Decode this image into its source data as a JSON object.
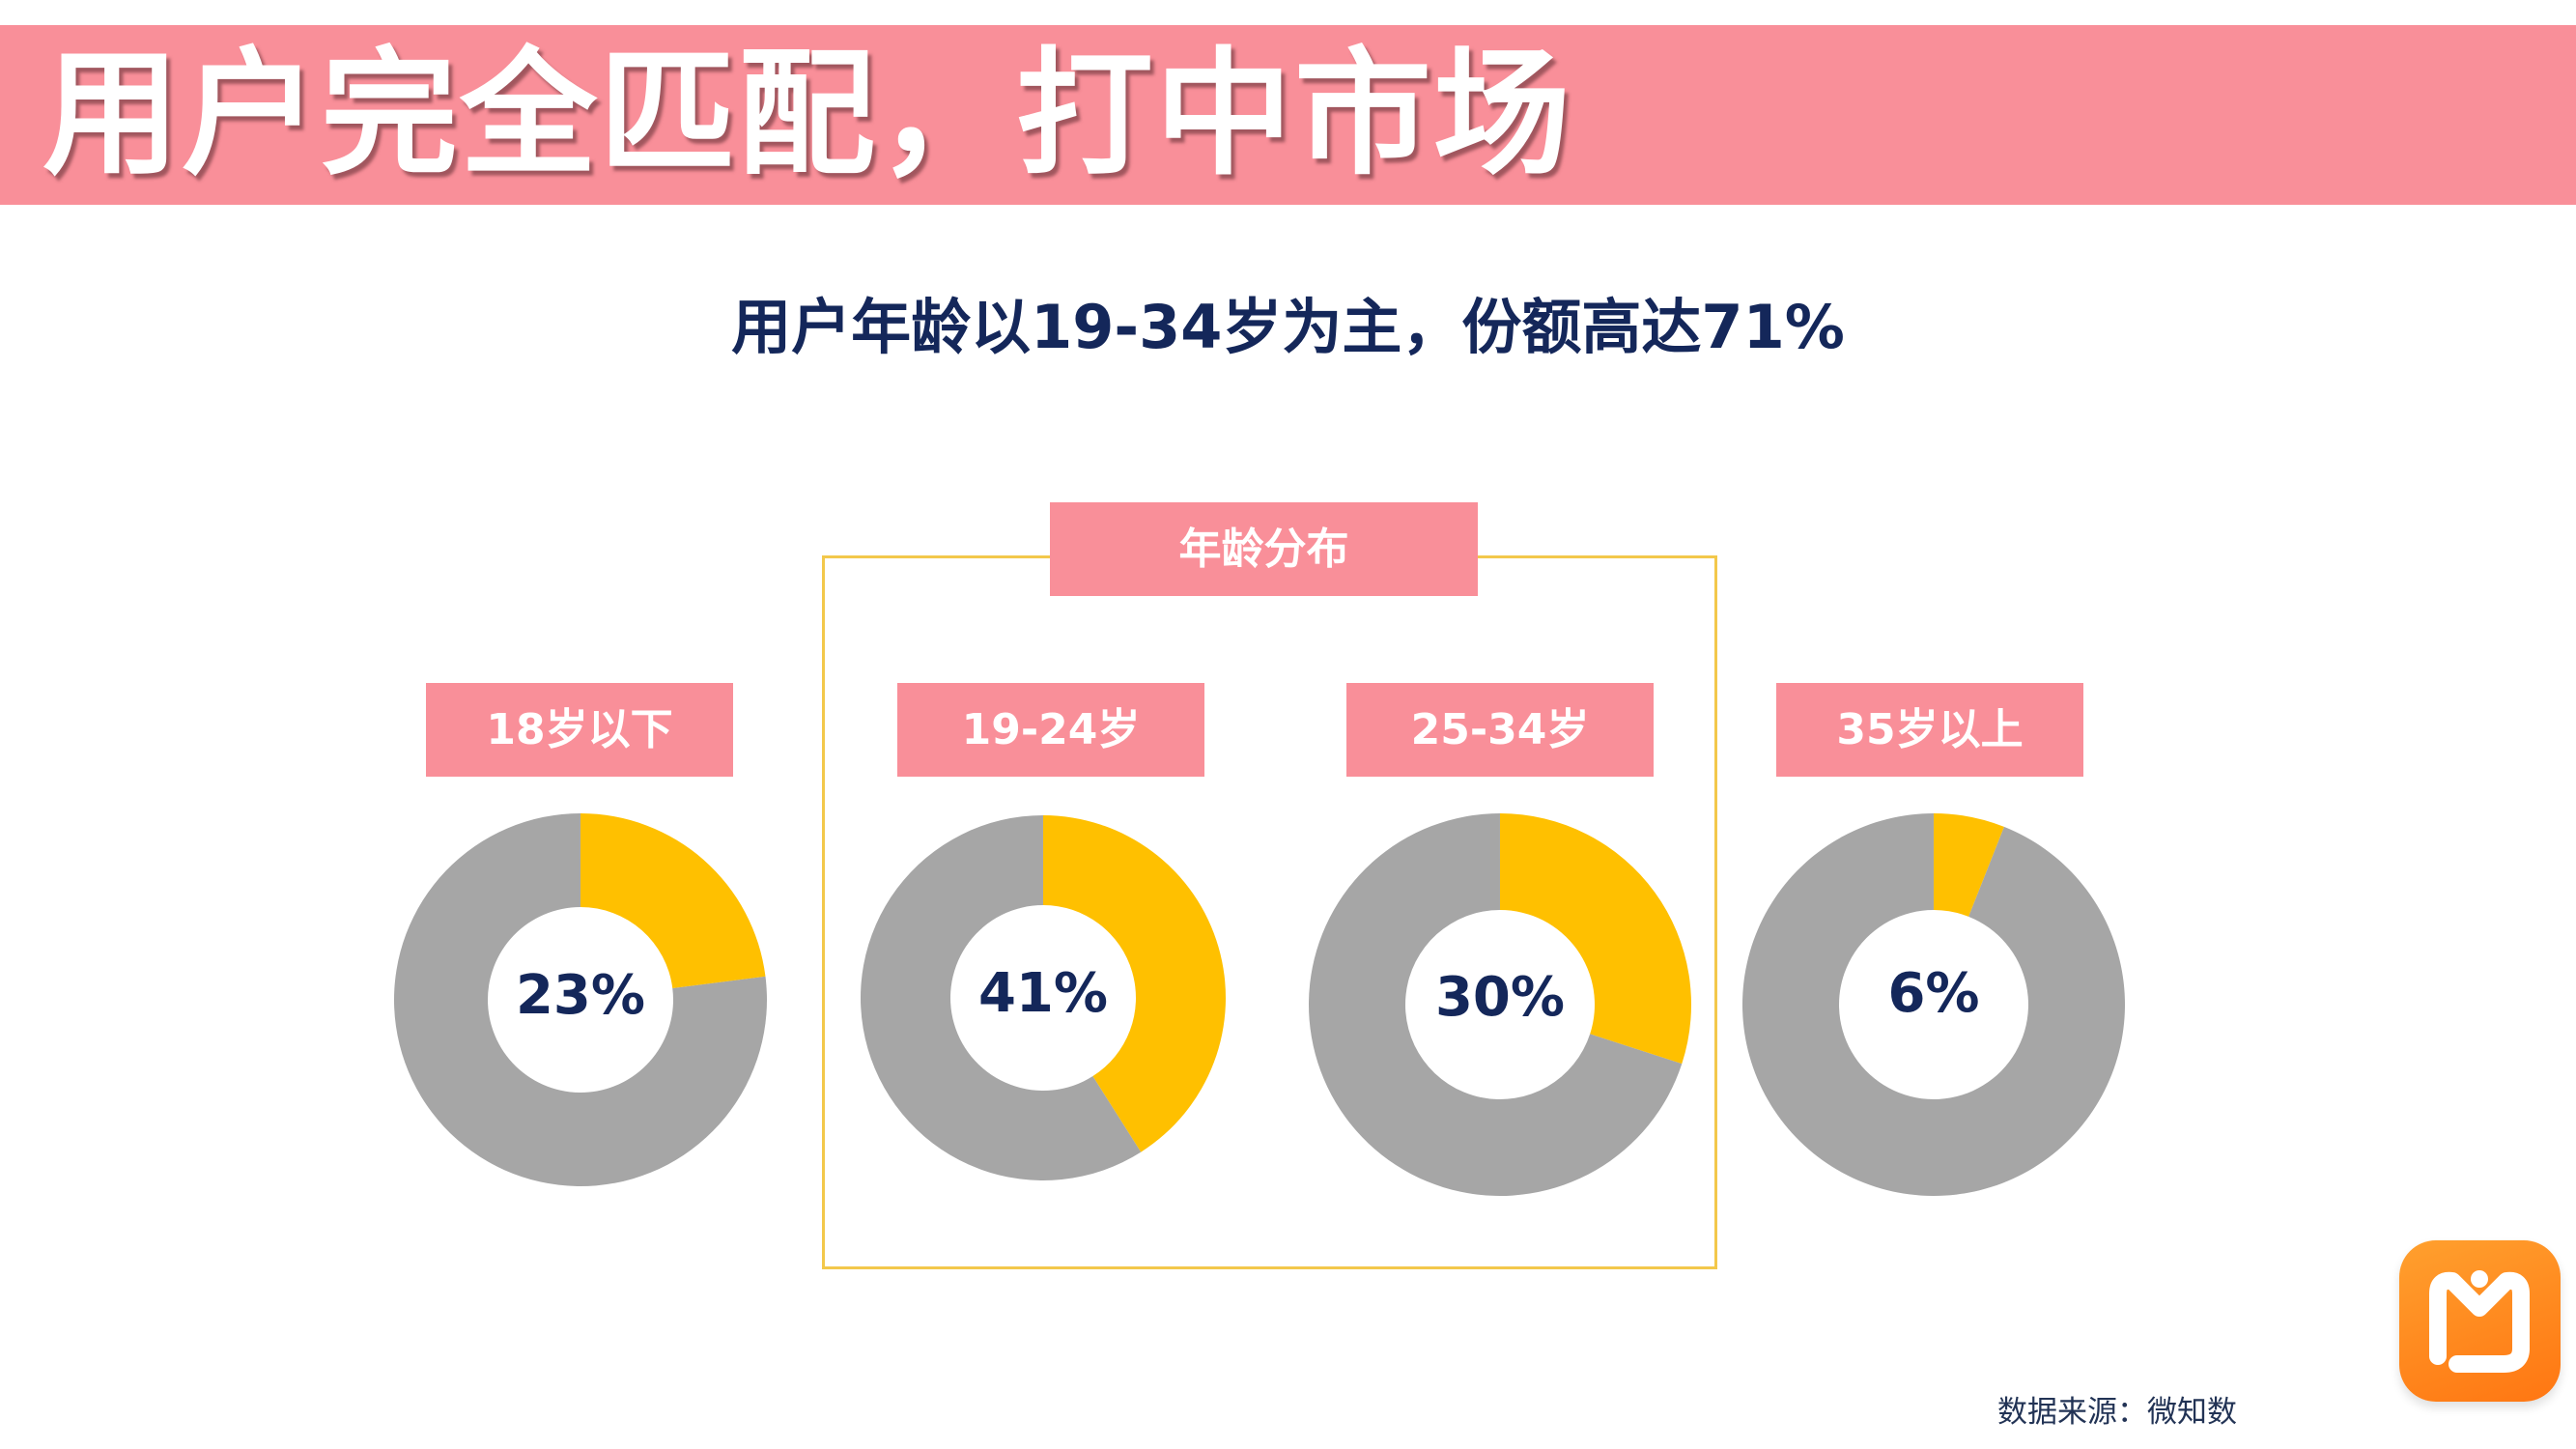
{
  "header": {
    "title": "用户完全匹配，打中市场",
    "subtitle": "用户年龄以19-34岁为主，份额高达71%"
  },
  "chart_data": {
    "type": "pie",
    "title": "年龄分布",
    "categories": [
      "18岁以下",
      "19-24岁",
      "25-34岁",
      "35岁以上"
    ],
    "values": [
      23,
      41,
      30,
      6
    ],
    "labels": [
      "23%",
      "41%",
      "30%",
      "6%"
    ],
    "highlighted_group": [
      "19-24岁",
      "25-34岁"
    ]
  },
  "colors": {
    "accent": "#ffc000",
    "remainder": "#a6a6a6",
    "label_bg": "#f98f99",
    "text": "#14275a",
    "frame": "#f3c84b"
  },
  "logo": {
    "icon": "mango-tv-logo-icon"
  },
  "footer": {
    "source": "数据来源：微知数"
  }
}
